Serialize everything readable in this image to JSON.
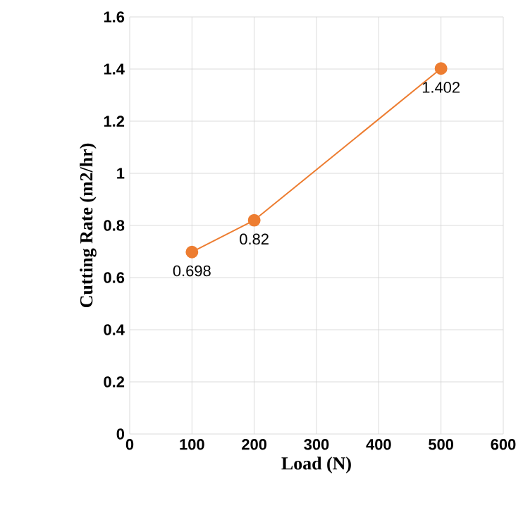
{
  "chart_data": {
    "type": "line",
    "xlabel": "Load (N)",
    "ylabel": "Cutting Rate (m2/hr)",
    "x": [
      100,
      200,
      500
    ],
    "values": [
      0.698,
      0.82,
      1.402
    ],
    "color": "#ed7d31",
    "marker": "circle",
    "data_labels": true,
    "grid": true,
    "xlim": [
      0,
      600
    ],
    "xticks": [
      0,
      100,
      200,
      300,
      400,
      500,
      600
    ],
    "ylim": [
      0,
      1.6
    ],
    "yticks": [
      0,
      0.2,
      0.4,
      0.6,
      0.8,
      1,
      1.2,
      1.4,
      1.6
    ]
  }
}
